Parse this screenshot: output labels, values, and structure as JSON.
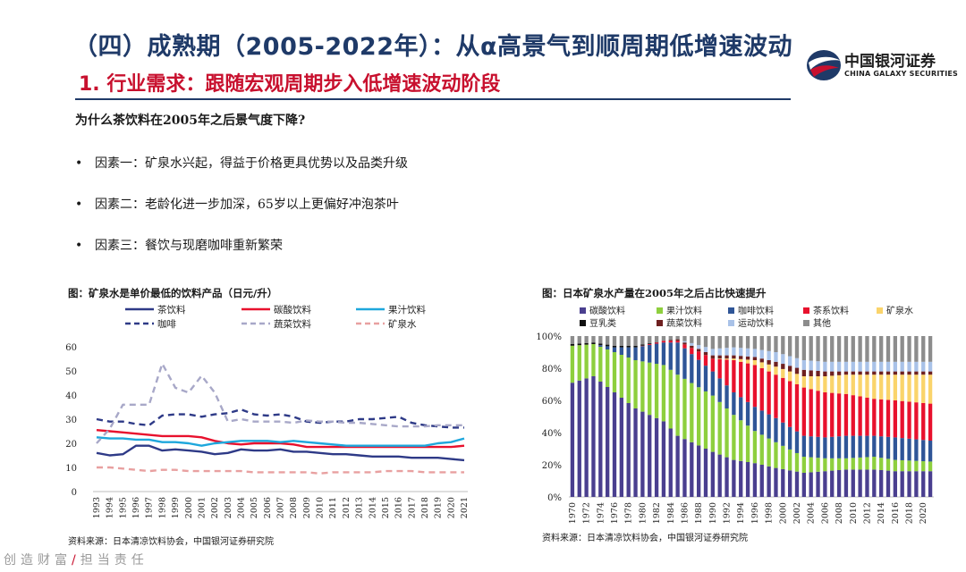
{
  "header": {
    "title": "（四）成熟期（2005-2022年）：从α高景气到顺周期低增速波动",
    "subtitle": "1. 行业需求：跟随宏观周期步入低增速波动阶段",
    "logo_cn": "中国银河证券",
    "logo_en": "CHINA GALAXY SECURITIES"
  },
  "main": {
    "question": "为什么茶饮料在2005年之后景气度下降?",
    "bullets": [
      "因素一：矿泉水兴起，得益于价格更具优势以及品类升级",
      "因素二：老龄化进一步加深，65岁以上更偏好冲泡茶叶",
      "因素三：餐饮与现磨咖啡重新繁荣"
    ],
    "bullet_mark": "•"
  },
  "left_figure": {
    "title": "图：矿泉水是单价最低的饮料产品（日元/升）",
    "source": "资料来源：日本清凉饮料协会，中国银河证券研究院"
  },
  "right_figure": {
    "title": "图：日本矿泉水产量在2005年之后占比快速提升",
    "source": "资料来源：日本清凉饮料协会，中国银河证券研究院"
  },
  "footer": {
    "left": "创造财富",
    "slash": "/",
    "right": "担当责任"
  },
  "chart_data": [
    {
      "type": "line",
      "title": "矿泉水是单价最低的饮料产品（日元/升）",
      "x": [
        "1993",
        "1994",
        "1995",
        "1996",
        "1997",
        "1998",
        "1999",
        "2000",
        "2001",
        "2002",
        "2003",
        "2004",
        "2005",
        "2006",
        "2007",
        "2008",
        "2009",
        "2010",
        "2011",
        "2012",
        "2013",
        "2014",
        "2015",
        "2016",
        "2017",
        "2018",
        "2019",
        "2020",
        "2021"
      ],
      "ylim": [
        0,
        60
      ],
      "yticks": [
        0,
        10,
        20,
        30,
        40,
        50,
        60
      ],
      "series": [
        {
          "name": "茶饮料",
          "color": "#2e3a87",
          "dash": "solid",
          "values": [
            16,
            15,
            15.5,
            19,
            19,
            17,
            17.5,
            17,
            16.5,
            15.5,
            16,
            17.5,
            17,
            17,
            17.5,
            16.5,
            16.5,
            16,
            15.5,
            15.5,
            15,
            14.5,
            14.5,
            14.5,
            14,
            14,
            14,
            13.5,
            13
          ]
        },
        {
          "name": "碳酸饮料",
          "color": "#e8112d",
          "dash": "solid",
          "values": [
            25.5,
            25,
            24.5,
            24,
            23.5,
            23,
            23,
            23,
            22.5,
            21,
            20,
            19.5,
            20,
            20,
            20,
            19.5,
            18.5,
            18.5,
            18.5,
            18.5,
            18.5,
            18.5,
            18.5,
            18.5,
            18.5,
            18.5,
            18.5,
            18.5,
            19
          ]
        },
        {
          "name": "果汁饮料",
          "color": "#1ea7dc",
          "dash": "solid",
          "values": [
            22.5,
            22,
            22,
            21.5,
            21.5,
            20.5,
            20.5,
            20,
            19,
            20,
            20.5,
            21,
            21,
            21,
            20.5,
            21,
            20.5,
            20,
            19.5,
            19,
            19,
            19,
            19,
            19,
            19,
            19,
            20,
            20.5,
            22
          ]
        },
        {
          "name": "咖啡",
          "color": "#2e3a87",
          "dash": "dash",
          "values": [
            30,
            29,
            29,
            28,
            27.5,
            31.5,
            32,
            32,
            31,
            32,
            32.5,
            34,
            32,
            31.5,
            32,
            31,
            29,
            28.5,
            29,
            29,
            30,
            30,
            30.5,
            31,
            28.5,
            27.5,
            27,
            26.5,
            26.5
          ]
        },
        {
          "name": "蔬菜饮料",
          "color": "#a8a8c8",
          "dash": "dash",
          "values": [
            20,
            26,
            36,
            36,
            36,
            53,
            43,
            41,
            48,
            41,
            29,
            30,
            29,
            29,
            29,
            28.5,
            29.5,
            29,
            29,
            28.5,
            28.5,
            28,
            27.5,
            27,
            27,
            27,
            27.5,
            27.5,
            27.5
          ]
        },
        {
          "name": "矿泉水",
          "color": "#e8a0a0",
          "dash": "dash",
          "values": [
            10,
            10,
            9.5,
            9,
            8.5,
            9,
            9,
            8.5,
            8.5,
            8.5,
            8.5,
            8.5,
            8,
            8,
            8,
            8,
            8,
            7.5,
            8,
            8,
            8,
            8,
            8.5,
            8.5,
            8.5,
            8,
            8,
            8,
            8
          ]
        }
      ]
    },
    {
      "type": "bar",
      "stacked": "percent",
      "title": "日本矿泉水产量在2005年之后占比快速提升",
      "x_start": 1970,
      "x_end": 2021,
      "ylim": [
        0,
        100
      ],
      "yticks": [
        "0%",
        "20%",
        "40%",
        "60%",
        "80%",
        "100%"
      ],
      "series": [
        {
          "name": "碳酸饮料",
          "color": "#4a3f8f"
        },
        {
          "name": "果汁饮料",
          "color": "#8ecf3e"
        },
        {
          "name": "咖啡饮料",
          "color": "#2f5597"
        },
        {
          "name": "茶系饮料",
          "color": "#e8112d"
        },
        {
          "name": "矿泉水",
          "color": "#fad46b"
        },
        {
          "name": "豆乳类",
          "color": "#111111"
        },
        {
          "name": "蔬菜饮料",
          "color": "#6e2020"
        },
        {
          "name": "运动饮料",
          "color": "#a9c2e8"
        },
        {
          "name": "其他",
          "color": "#8c8c8c"
        }
      ],
      "anchors": [
        {
          "year": 1970,
          "v": [
            71,
            23,
            0,
            0,
            0,
            1,
            0,
            0,
            5
          ]
        },
        {
          "year": 1973,
          "v": [
            75,
            20,
            0,
            0,
            0,
            1,
            0,
            0,
            4
          ]
        },
        {
          "year": 1976,
          "v": [
            65,
            25,
            3,
            0,
            0,
            1,
            0,
            0,
            6
          ]
        },
        {
          "year": 1979,
          "v": [
            55,
            30,
            8,
            0,
            0,
            1,
            0,
            0,
            6
          ]
        },
        {
          "year": 1983,
          "v": [
            47,
            35,
            14,
            1,
            0,
            0,
            0,
            0,
            3
          ]
        },
        {
          "year": 1985,
          "v": [
            38,
            38,
            20,
            1,
            0,
            0,
            1,
            0,
            2
          ]
        },
        {
          "year": 1990,
          "v": [
            28,
            35,
            15,
            8,
            0,
            0,
            2,
            4,
            8
          ]
        },
        {
          "year": 1993,
          "v": [
            23,
            28,
            14,
            20,
            1,
            0,
            2,
            5,
            7
          ]
        },
        {
          "year": 1996,
          "v": [
            21,
            20,
            15,
            26,
            3,
            0,
            2,
            5,
            8
          ]
        },
        {
          "year": 1999,
          "v": [
            18,
            16,
            15,
            27,
            5,
            0,
            3,
            6,
            10
          ]
        },
        {
          "year": 2003,
          "v": [
            15,
            10,
            13,
            30,
            7,
            0,
            4,
            6,
            15
          ]
        },
        {
          "year": 2006,
          "v": [
            16,
            8,
            13,
            28,
            10,
            0,
            3,
            6,
            16
          ]
        },
        {
          "year": 2009,
          "v": [
            17,
            7,
            14,
            26,
            12,
            0,
            2,
            6,
            16
          ]
        },
        {
          "year": 2013,
          "v": [
            17,
            8,
            13,
            23,
            15,
            0,
            2,
            6,
            16
          ]
        },
        {
          "year": 2016,
          "v": [
            16,
            7,
            14,
            23,
            16,
            0,
            2,
            6,
            16
          ]
        },
        {
          "year": 2021,
          "v": [
            16,
            6,
            13,
            23,
            18,
            0,
            2,
            6,
            16
          ]
        }
      ]
    }
  ]
}
